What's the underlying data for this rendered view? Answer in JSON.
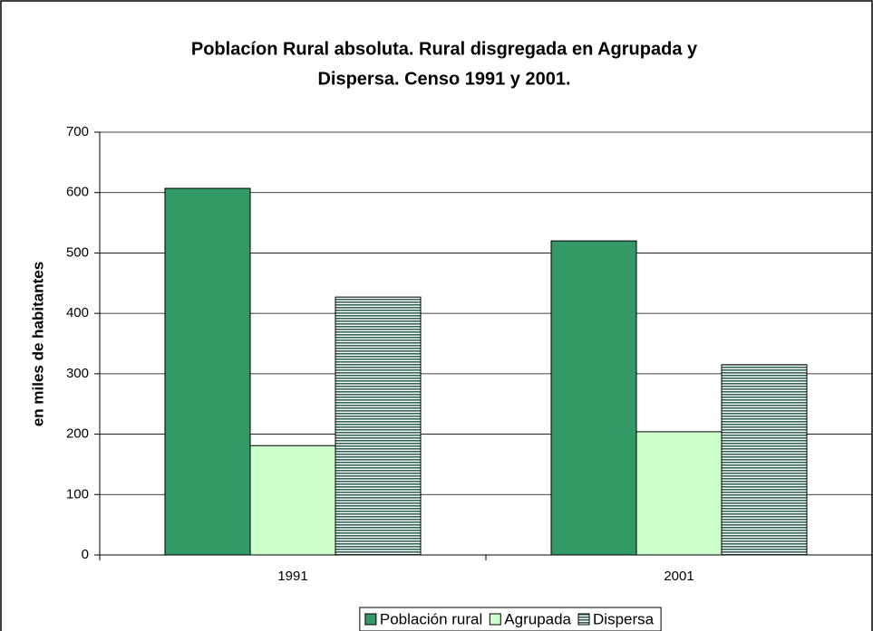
{
  "chart_data": {
    "type": "bar",
    "title": [
      "Poblacíon Rural absoluta. Rural disgregada en Agrupada y",
      "Dispersa. Censo 1991 y 2001."
    ],
    "y_label": "en miles de habitantes",
    "categories": [
      "1991",
      "2001"
    ],
    "series": [
      {
        "name": "Población rural",
        "color": "#339966",
        "values": [
          607,
          520
        ]
      },
      {
        "name": "Agrupada",
        "color": "#ccffcc",
        "values": [
          181,
          204
        ]
      },
      {
        "name": "Dispersa",
        "color": "#336655",
        "pattern": "horizontal-lines",
        "values": [
          427,
          315
        ]
      }
    ],
    "ylim": [
      0,
      700
    ],
    "yticks": [
      0,
      100,
      200,
      300,
      400,
      500,
      600,
      700
    ],
    "grid": true,
    "legend": "bottom"
  }
}
